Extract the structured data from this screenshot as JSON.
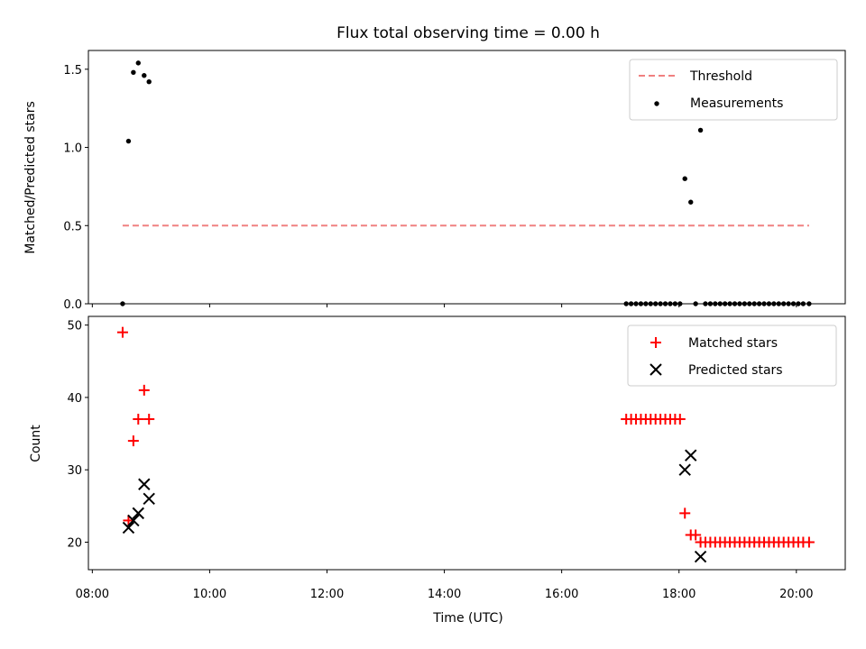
{
  "title": "Flux total observing time = 0.00 h",
  "colors": {
    "threshold": "#f08080",
    "measurements": "#000000",
    "matched": "#ff0000",
    "predicted": "#000000"
  },
  "chart_data": [
    {
      "type": "scatter",
      "ylabel": "Matched/Predicted stars",
      "xlim": [
        "07:56",
        "20:50"
      ],
      "ylim": [
        0,
        1.62
      ],
      "yticks": [
        0.0,
        0.5,
        1.0,
        1.5
      ],
      "ytick_labels": [
        "0.0",
        "0.5",
        "1.0",
        "1.5"
      ],
      "legend": "top-right",
      "series": [
        {
          "name": "Threshold",
          "kind": "dashed-line",
          "x": [
            "08:31",
            "20:13"
          ],
          "y": [
            0.5,
            0.5
          ]
        },
        {
          "name": "Measurements",
          "kind": "dot",
          "x": [
            "08:31",
            "08:37",
            "08:42",
            "08:47",
            "08:53",
            "08:58",
            "17:06",
            "17:11",
            "17:16",
            "17:21",
            "17:26",
            "17:31",
            "17:36",
            "17:41",
            "17:46",
            "17:51",
            "17:56",
            "18:01",
            "18:06",
            "18:12",
            "18:17",
            "18:22",
            "18:27",
            "18:32",
            "18:37",
            "18:42",
            "18:47",
            "18:52",
            "18:57",
            "19:02",
            "19:07",
            "19:12",
            "19:17",
            "19:22",
            "19:27",
            "19:32",
            "19:37",
            "19:42",
            "19:47",
            "19:52",
            "19:57",
            "20:02",
            "20:07",
            "20:13"
          ],
          "y": [
            0.0,
            1.04,
            1.48,
            1.54,
            1.46,
            1.42,
            0.0,
            0.0,
            0.0,
            0.0,
            0.0,
            0.0,
            0.0,
            0.0,
            0.0,
            0.0,
            0.0,
            0.0,
            0.8,
            0.65,
            0.0,
            1.11,
            0.0,
            0.0,
            0.0,
            0.0,
            0.0,
            0.0,
            0.0,
            0.0,
            0.0,
            0.0,
            0.0,
            0.0,
            0.0,
            0.0,
            0.0,
            0.0,
            0.0,
            0.0,
            0.0,
            0.0,
            0.0,
            0.0
          ]
        }
      ]
    },
    {
      "type": "scatter",
      "ylabel": "Count",
      "xlabel": "Time (UTC)",
      "xlim": [
        "07:56",
        "20:50"
      ],
      "ylim": [
        16.2,
        51.2
      ],
      "xticks": [
        "08:00",
        "10:00",
        "12:00",
        "14:00",
        "16:00",
        "18:00",
        "20:00"
      ],
      "yticks": [
        20,
        30,
        40,
        50
      ],
      "legend": "top-right",
      "series": [
        {
          "name": "Matched stars",
          "kind": "plus",
          "x": [
            "08:31",
            "08:37",
            "08:42",
            "08:47",
            "08:53",
            "08:58",
            "17:06",
            "17:11",
            "17:16",
            "17:21",
            "17:26",
            "17:31",
            "17:36",
            "17:41",
            "17:46",
            "17:51",
            "17:56",
            "18:01",
            "18:06",
            "18:12",
            "18:17",
            "18:22",
            "18:27",
            "18:32",
            "18:37",
            "18:42",
            "18:47",
            "18:52",
            "18:57",
            "19:02",
            "19:07",
            "19:12",
            "19:17",
            "19:22",
            "19:27",
            "19:32",
            "19:37",
            "19:42",
            "19:47",
            "19:52",
            "19:57",
            "20:02",
            "20:07",
            "20:13"
          ],
          "y": [
            49,
            23,
            34,
            37,
            41,
            37,
            37,
            37,
            37,
            37,
            37,
            37,
            37,
            37,
            37,
            37,
            37,
            37,
            24,
            21,
            21,
            20,
            20,
            20,
            20,
            20,
            20,
            20,
            20,
            20,
            20,
            20,
            20,
            20,
            20,
            20,
            20,
            20,
            20,
            20,
            20,
            20,
            20,
            20
          ]
        },
        {
          "name": "Predicted stars",
          "kind": "cross",
          "x": [
            "08:37",
            "08:42",
            "08:47",
            "08:53",
            "08:58",
            "18:06",
            "18:12",
            "18:22"
          ],
          "y": [
            22,
            23,
            24,
            28,
            26,
            30,
            32,
            18
          ]
        }
      ]
    }
  ]
}
